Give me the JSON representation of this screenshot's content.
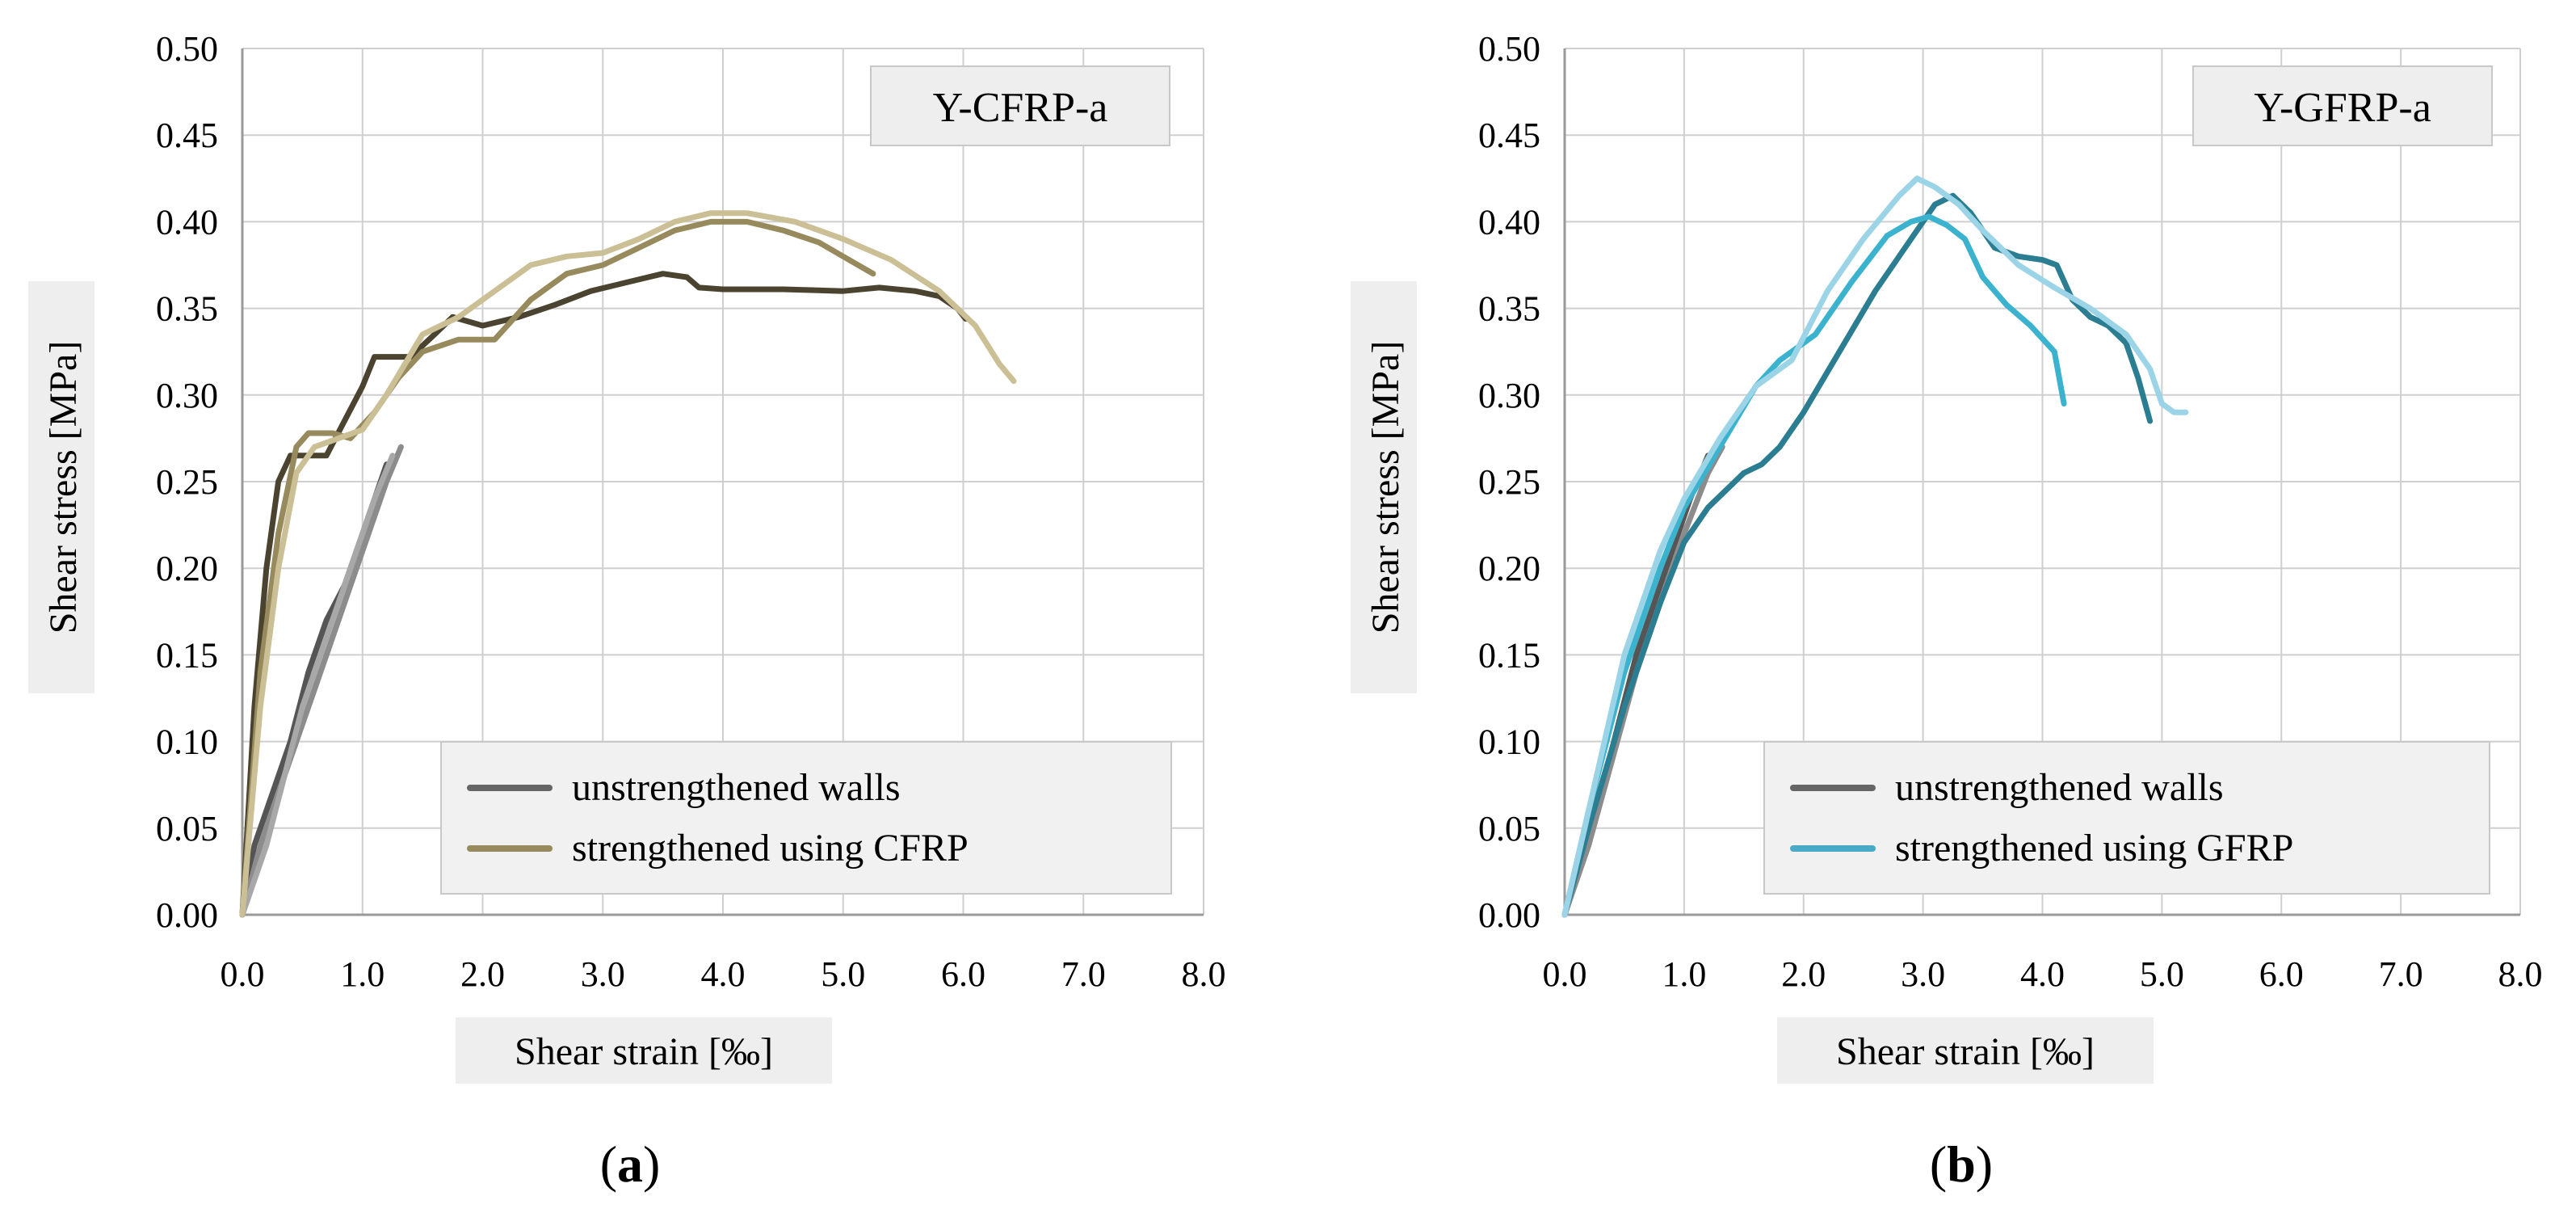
{
  "figure": {
    "colors": {
      "grid": "#cfcfcf",
      "axis": "#9a9a9a",
      "title_bg": "#eeeeee",
      "legend_bg": "#f1f1f1",
      "legend_border": "#c8c8c8"
    }
  },
  "chart_data": [
    {
      "type": "line",
      "panel_label": "a",
      "tag": "Y-CFRP-a",
      "xlabel": "Shear strain [‰]",
      "ylabel": "Shear stress [MPa]",
      "xlim": [
        0,
        8
      ],
      "ylim": [
        0,
        0.5
      ],
      "x_ticks": [
        "0.0",
        "1.0",
        "2.0",
        "3.0",
        "4.0",
        "5.0",
        "6.0",
        "7.0",
        "8.0"
      ],
      "y_ticks": [
        "0.00",
        "0.05",
        "0.10",
        "0.15",
        "0.20",
        "0.25",
        "0.30",
        "0.35",
        "0.40",
        "0.45",
        "0.50"
      ],
      "x_tick_values": [
        0,
        1,
        2,
        3,
        4,
        5,
        6,
        7,
        8
      ],
      "y_tick_values": [
        0,
        0.05,
        0.1,
        0.15,
        0.2,
        0.25,
        0.3,
        0.35,
        0.4,
        0.45,
        0.5
      ],
      "legend": [
        {
          "label": "unstrengthened walls",
          "color": "#666666"
        },
        {
          "label": "strengthened using CFRP",
          "color": "#978a5c"
        }
      ],
      "series": [
        {
          "name": "unstrengthened walls (1)",
          "color": "#555555",
          "x": [
            0,
            0.1,
            0.25,
            0.4,
            0.55,
            0.7,
            0.85,
            1.0,
            1.15,
            1.2
          ],
          "y": [
            0,
            0.04,
            0.07,
            0.1,
            0.14,
            0.17,
            0.19,
            0.22,
            0.25,
            0.26
          ]
        },
        {
          "name": "unstrengthened walls (2)",
          "color": "#8c8c8c",
          "x": [
            0,
            0.15,
            0.3,
            0.45,
            0.6,
            0.75,
            0.9,
            1.05,
            1.2,
            1.32
          ],
          "y": [
            0,
            0.04,
            0.07,
            0.1,
            0.13,
            0.16,
            0.19,
            0.22,
            0.25,
            0.27
          ]
        },
        {
          "name": "unstrengthened walls (3)",
          "color": "#a8a8a8",
          "x": [
            0,
            0.2,
            0.35,
            0.5,
            0.65,
            0.8,
            0.95,
            1.1,
            1.25
          ],
          "y": [
            0,
            0.04,
            0.08,
            0.12,
            0.15,
            0.18,
            0.21,
            0.24,
            0.265
          ]
        },
        {
          "name": "strengthened using CFRP (1)",
          "color": "#4a4330",
          "x": [
            0,
            0.1,
            0.2,
            0.3,
            0.4,
            0.55,
            0.7,
            0.85,
            1.0,
            1.1,
            1.4,
            1.6,
            1.75,
            2.0,
            2.3,
            2.6,
            2.9,
            3.2,
            3.5,
            3.7,
            3.8,
            4.0,
            4.5,
            5.0,
            5.3,
            5.6,
            5.8,
            5.95,
            6.02
          ],
          "y": [
            0,
            0.12,
            0.2,
            0.25,
            0.265,
            0.265,
            0.265,
            0.285,
            0.305,
            0.322,
            0.322,
            0.335,
            0.345,
            0.34,
            0.345,
            0.352,
            0.36,
            0.365,
            0.37,
            0.368,
            0.362,
            0.361,
            0.361,
            0.36,
            0.362,
            0.36,
            0.357,
            0.35,
            0.344
          ]
        },
        {
          "name": "strengthened using CFRP (2)",
          "color": "#978a5c",
          "x": [
            0,
            0.15,
            0.3,
            0.45,
            0.55,
            0.75,
            0.9,
            1.1,
            1.3,
            1.5,
            1.8,
            2.1,
            2.4,
            2.7,
            3.0,
            3.3,
            3.6,
            3.9,
            4.2,
            4.5,
            4.8,
            5.05,
            5.25
          ],
          "y": [
            0,
            0.14,
            0.22,
            0.27,
            0.278,
            0.278,
            0.275,
            0.29,
            0.31,
            0.325,
            0.332,
            0.332,
            0.355,
            0.37,
            0.375,
            0.385,
            0.395,
            0.4,
            0.4,
            0.395,
            0.388,
            0.378,
            0.37
          ]
        },
        {
          "name": "strengthened using CFRP (3)",
          "color": "#cbbf95",
          "x": [
            0,
            0.15,
            0.3,
            0.45,
            0.6,
            0.8,
            1.0,
            1.2,
            1.5,
            1.8,
            2.1,
            2.4,
            2.7,
            3.0,
            3.3,
            3.6,
            3.9,
            4.2,
            4.6,
            5.0,
            5.4,
            5.8,
            6.1,
            6.3,
            6.42
          ],
          "y": [
            0,
            0.12,
            0.2,
            0.255,
            0.27,
            0.275,
            0.28,
            0.3,
            0.335,
            0.345,
            0.36,
            0.375,
            0.38,
            0.382,
            0.39,
            0.4,
            0.405,
            0.405,
            0.4,
            0.39,
            0.378,
            0.36,
            0.34,
            0.318,
            0.308
          ]
        }
      ]
    },
    {
      "type": "line",
      "panel_label": "b",
      "tag": "Y-GFRP-a",
      "xlabel": "Shear strain [‰]",
      "ylabel": "Shear stress [MPa]",
      "xlim": [
        0,
        8
      ],
      "ylim": [
        0,
        0.5
      ],
      "x_ticks": [
        "0.0",
        "1.0",
        "2.0",
        "3.0",
        "4.0",
        "5.0",
        "6.0",
        "7.0",
        "8.0"
      ],
      "y_ticks": [
        "0.00",
        "0.05",
        "0.10",
        "0.15",
        "0.20",
        "0.25",
        "0.30",
        "0.35",
        "0.40",
        "0.45",
        "0.50"
      ],
      "x_tick_values": [
        0,
        1,
        2,
        3,
        4,
        5,
        6,
        7,
        8
      ],
      "y_tick_values": [
        0,
        0.05,
        0.1,
        0.15,
        0.2,
        0.25,
        0.3,
        0.35,
        0.4,
        0.45,
        0.5
      ],
      "legend": [
        {
          "label": "unstrengthened walls",
          "color": "#666666"
        },
        {
          "label": "strengthened using GFRP",
          "color": "#4aaac6"
        }
      ],
      "series": [
        {
          "name": "unstrengthened walls (1)",
          "color": "#555555",
          "x": [
            0,
            0.15,
            0.3,
            0.45,
            0.6,
            0.75,
            0.9,
            1.05,
            1.2
          ],
          "y": [
            0,
            0.04,
            0.07,
            0.11,
            0.15,
            0.18,
            0.21,
            0.24,
            0.265
          ]
        },
        {
          "name": "unstrengthened walls (2)",
          "color": "#8c8c8c",
          "x": [
            0,
            0.2,
            0.4,
            0.6,
            0.8,
            1.0,
            1.2,
            1.32
          ],
          "y": [
            0,
            0.04,
            0.09,
            0.14,
            0.18,
            0.22,
            0.255,
            0.27
          ]
        },
        {
          "name": "strengthened using GFRP (1)",
          "color": "#2b7d91",
          "x": [
            0,
            0.2,
            0.5,
            0.8,
            1.0,
            1.2,
            1.5,
            1.65,
            1.8,
            2.0,
            2.3,
            2.6,
            2.9,
            3.1,
            3.25,
            3.4,
            3.6,
            3.8,
            4.0,
            4.12,
            4.25,
            4.4,
            4.55,
            4.7,
            4.8,
            4.9
          ],
          "y": [
            0,
            0.05,
            0.12,
            0.18,
            0.215,
            0.235,
            0.255,
            0.26,
            0.27,
            0.29,
            0.325,
            0.36,
            0.39,
            0.41,
            0.415,
            0.405,
            0.385,
            0.38,
            0.378,
            0.375,
            0.355,
            0.345,
            0.34,
            0.33,
            0.31,
            0.285
          ]
        },
        {
          "name": "strengthened using GFRP (2)",
          "color": "#3bb3cf",
          "x": [
            0,
            0.2,
            0.5,
            0.8,
            1.0,
            1.3,
            1.6,
            1.8,
            2.1,
            2.4,
            2.7,
            2.9,
            3.05,
            3.2,
            3.35,
            3.5,
            3.7,
            3.9,
            4.1,
            4.18
          ],
          "y": [
            0,
            0.06,
            0.14,
            0.2,
            0.235,
            0.27,
            0.305,
            0.32,
            0.335,
            0.365,
            0.392,
            0.4,
            0.403,
            0.398,
            0.39,
            0.368,
            0.352,
            0.34,
            0.325,
            0.295
          ]
        },
        {
          "name": "strengthened using GFRP (3)",
          "color": "#9bd4e6",
          "x": [
            0,
            0.2,
            0.5,
            0.8,
            1.0,
            1.3,
            1.6,
            1.9,
            2.2,
            2.5,
            2.8,
            2.95,
            3.1,
            3.3,
            3.5,
            3.8,
            4.1,
            4.4,
            4.7,
            4.9,
            5.0,
            5.1,
            5.2
          ],
          "y": [
            0,
            0.06,
            0.15,
            0.21,
            0.24,
            0.275,
            0.305,
            0.32,
            0.36,
            0.39,
            0.415,
            0.425,
            0.42,
            0.41,
            0.395,
            0.375,
            0.362,
            0.35,
            0.335,
            0.315,
            0.295,
            0.29,
            0.29
          ]
        }
      ]
    }
  ]
}
